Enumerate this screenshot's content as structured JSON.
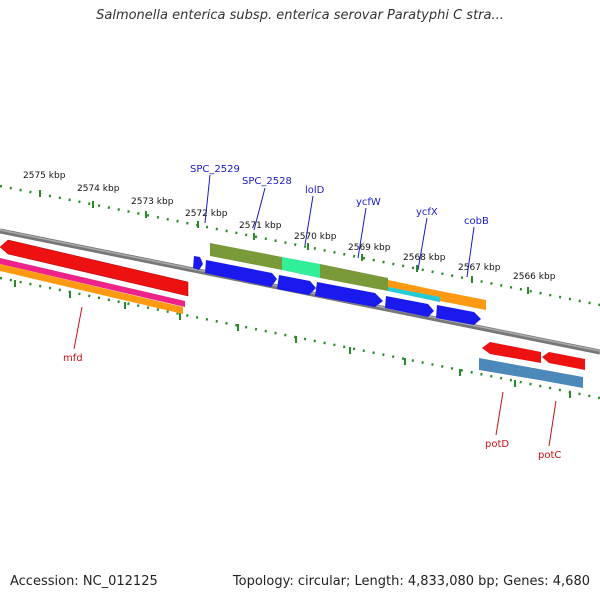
{
  "title": "Salmonella enterica subsp. enterica serovar Paratyphi C stra...",
  "footer": {
    "accession": "Accession: NC_012125",
    "summary": "Topology: circular; Length: 4,833,080 bp; Genes: 4,680"
  },
  "scale_labels": [
    "2575 kbp",
    "2574 kbp",
    "2573 kbp",
    "2572 kbp",
    "2571 kbp",
    "2570 kbp",
    "2569 kbp",
    "2568 kbp",
    "2567 kbp",
    "2566 kbp"
  ],
  "gene_labels_top": [
    "SPC_2529",
    "SPC_2528",
    "lolD",
    "ycfW",
    "ycfX",
    "cobB"
  ],
  "gene_labels_bottom": [
    "mfd",
    "potD",
    "potC"
  ],
  "colors": {
    "backbone": "#888888",
    "tick": "#2a8a2a",
    "gene_blue": "#1a1aee",
    "gene_red": "#ee1111",
    "olive": "#7a9a3a",
    "teal": "#33ee99",
    "orange": "#ff9911",
    "cyan": "#22ccdd",
    "magenta": "#ee2288",
    "steel": "#4d88bb"
  }
}
